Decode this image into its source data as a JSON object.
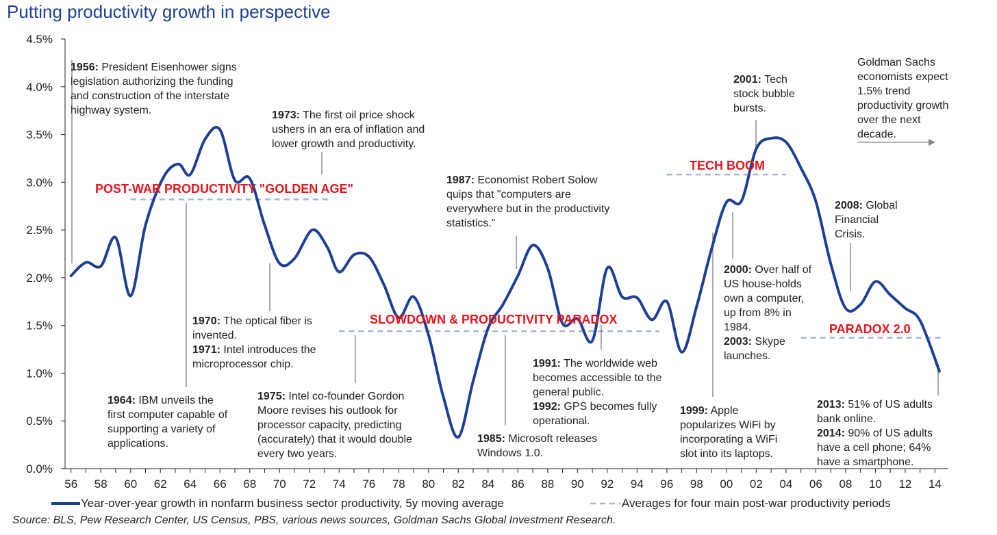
{
  "title": "Putting productivity growth in perspective",
  "chart_data": {
    "type": "line",
    "xlabel": "",
    "ylabel": "",
    "ylim": [
      0,
      4.5
    ],
    "yticks": [
      "0.0%",
      "0.5%",
      "1.0%",
      "1.5%",
      "2.0%",
      "2.5%",
      "3.0%",
      "3.5%",
      "4.0%",
      "4.5%"
    ],
    "xticks": [
      "56",
      "58",
      "60",
      "62",
      "64",
      "66",
      "68",
      "70",
      "72",
      "74",
      "76",
      "78",
      "80",
      "82",
      "84",
      "86",
      "88",
      "90",
      "92",
      "94",
      "96",
      "98",
      "00",
      "02",
      "04",
      "06",
      "08",
      "10",
      "12",
      "14"
    ],
    "series": [
      {
        "name": "Year-over-year growth in nonfarm business sector productivity, 5y moving average",
        "color": "#1f3f95",
        "points": [
          [
            1956.0,
            2.02
          ],
          [
            1957.0,
            2.16
          ],
          [
            1958.0,
            2.12
          ],
          [
            1959.0,
            2.42
          ],
          [
            1960.0,
            1.81
          ],
          [
            1961.0,
            2.55
          ],
          [
            1962.2,
            3.05
          ],
          [
            1963.2,
            3.19
          ],
          [
            1964.0,
            3.08
          ],
          [
            1965.0,
            3.45
          ],
          [
            1966.0,
            3.55
          ],
          [
            1967.0,
            3.02
          ],
          [
            1968.0,
            3.04
          ],
          [
            1969.0,
            2.55
          ],
          [
            1970.0,
            2.15
          ],
          [
            1971.0,
            2.2
          ],
          [
            1972.2,
            2.5
          ],
          [
            1973.2,
            2.32
          ],
          [
            1974.0,
            2.06
          ],
          [
            1975.0,
            2.24
          ],
          [
            1976.0,
            2.22
          ],
          [
            1977.0,
            1.93
          ],
          [
            1978.0,
            1.58
          ],
          [
            1979.0,
            1.8
          ],
          [
            1980.0,
            1.4
          ],
          [
            1981.0,
            0.75
          ],
          [
            1982.0,
            0.33
          ],
          [
            1983.0,
            0.92
          ],
          [
            1984.0,
            1.47
          ],
          [
            1985.0,
            1.72
          ],
          [
            1986.0,
            2.02
          ],
          [
            1987.0,
            2.34
          ],
          [
            1988.0,
            2.1
          ],
          [
            1989.0,
            1.52
          ],
          [
            1990.0,
            1.57
          ],
          [
            1991.0,
            1.34
          ],
          [
            1992.0,
            2.1
          ],
          [
            1993.0,
            1.8
          ],
          [
            1994.0,
            1.79
          ],
          [
            1995.0,
            1.56
          ],
          [
            1996.0,
            1.75
          ],
          [
            1997.0,
            1.22
          ],
          [
            1998.0,
            1.7
          ],
          [
            1999.0,
            2.3
          ],
          [
            2000.0,
            2.79
          ],
          [
            2001.0,
            2.8
          ],
          [
            2002.0,
            3.35
          ],
          [
            2003.0,
            3.46
          ],
          [
            2004.0,
            3.42
          ],
          [
            2005.0,
            3.15
          ],
          [
            2006.0,
            2.8
          ],
          [
            2007.0,
            2.15
          ],
          [
            2008.0,
            1.68
          ],
          [
            2009.0,
            1.72
          ],
          [
            2010.0,
            1.96
          ],
          [
            2011.0,
            1.82
          ],
          [
            2012.0,
            1.68
          ],
          [
            2013.0,
            1.55
          ],
          [
            2014.3,
            1.02
          ]
        ]
      },
      {
        "name": "Averages for four main post-war productivity periods",
        "color": "#a6b4d6",
        "segments": [
          {
            "label": "POST-WAR PRODUCTIVITY \"GOLDEN AGE\"",
            "x": [
              1960.0,
              1973.5
            ],
            "y": 2.82
          },
          {
            "label": "SLOWDOWN & PRODUCTIVITY PARADOX",
            "x": [
              1974.0,
              1995.5
            ],
            "y": 1.44
          },
          {
            "label": "TECH BOOM",
            "x": [
              1996.0,
              2004.0
            ],
            "y": 3.08
          },
          {
            "label": "PARADOX 2.0",
            "x": [
              2005.0,
              2014.5
            ],
            "y": 1.37
          }
        ]
      }
    ]
  },
  "annotations": [
    {
      "year": "1956:",
      "text": " President Eisenhower signs legislation authorizing the funding and construction of the interstate highway system."
    },
    {
      "year": "1964:",
      "text": " IBM unveils the first computer capable of supporting a variety of applications."
    },
    {
      "year": "1970:",
      "text": " The optical fiber is invented.",
      "year2": "1971:",
      "text2": " Intel introduces the microprocessor chip."
    },
    {
      "year": "1973:",
      "text": " The first oil price shock ushers in an era of inflation and lower growth and productivity."
    },
    {
      "year": "1975:",
      "text": " Intel co-founder Gordon Moore revises his outlook for processor capacity, predicting (accurately) that it would double every two years."
    },
    {
      "year": "1985:",
      "text": " Microsoft releases Windows 1.0."
    },
    {
      "year": "1987:",
      "text": " Economist Robert Solow quips that \"computers are everywhere but in the productivity statistics.\""
    },
    {
      "year": "1991:",
      "text": " The worldwide web becomes accessible to the general public.",
      "year2": "1992:",
      "text2": " GPS becomes fully operational."
    },
    {
      "year": "1999:",
      "text": " Apple popularizes WiFi by incorporating a WiFi slot into its laptops."
    },
    {
      "year": "2000:",
      "text": " Over half of US house-holds own a computer, up from 8% in 1984.",
      "year2": "2003:",
      "text2": " Skype launches."
    },
    {
      "year": "2001:",
      "text": " Tech stock bubble bursts."
    },
    {
      "year": "2008:",
      "text": " Global Financial Crisis."
    },
    {
      "year": "2013:",
      "text": " 51% of US adults bank online.",
      "year2": "2014:",
      "text2": " 90% of US adults have a cell phone; 64% have a smartphone."
    },
    {
      "year": "",
      "text": "Goldman Sachs economists expect 1.5% trend productivity growth over the next decade."
    }
  ],
  "legend": {
    "line_label": "Year-over-year growth in nonfarm business sector productivity, 5y moving average",
    "dashed_label": "Averages for four main post-war productivity periods"
  },
  "source": "Source: BLS, Pew Research Center, US Census, PBS, various news sources, Goldman Sachs Global Investment Research."
}
